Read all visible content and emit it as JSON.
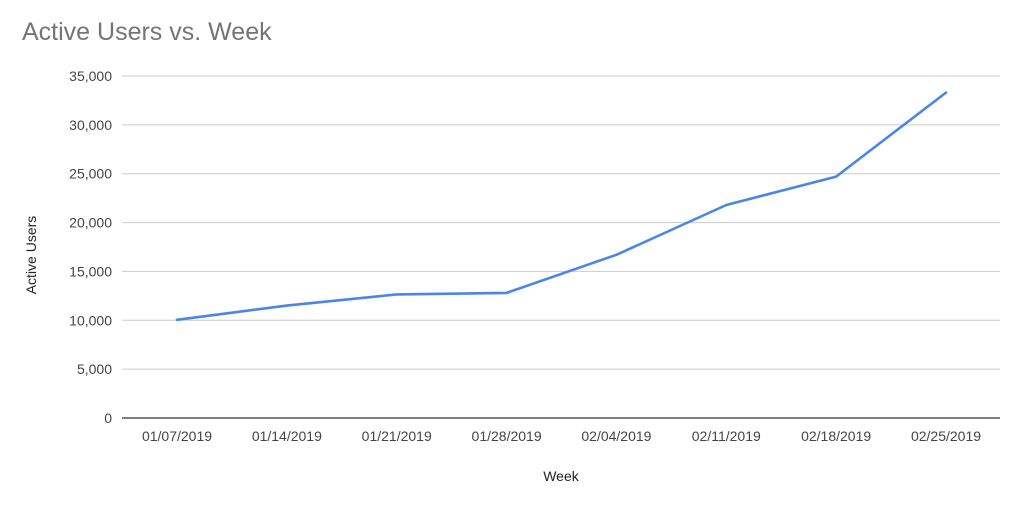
{
  "chart_data": {
    "type": "line",
    "title": "Active Users vs. Week",
    "xlabel": "Week",
    "ylabel": "Active Users",
    "categories": [
      "01/07/2019",
      "01/14/2019",
      "01/21/2019",
      "01/28/2019",
      "02/04/2019",
      "02/11/2019",
      "02/18/2019",
      "02/25/2019"
    ],
    "series": [
      {
        "values": [
          10050,
          11500,
          12650,
          12800,
          16700,
          21800,
          24700,
          33300
        ],
        "color": "#4a86e8"
      }
    ],
    "ylim": [
      0,
      35000
    ],
    "yticks": [
      0,
      5000,
      10000,
      15000,
      20000,
      25000,
      30000,
      35000
    ],
    "ytick_labels": [
      "0",
      "5,000",
      "10,000",
      "15,000",
      "20,000",
      "25,000",
      "30,000",
      "35,000"
    ],
    "grid": true,
    "legend": "none",
    "gridline_color": "#cccccc",
    "axis_color": "#333333"
  }
}
